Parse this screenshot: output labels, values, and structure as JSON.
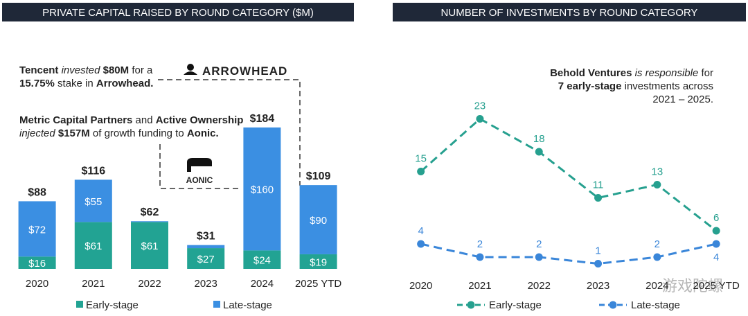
{
  "charts": [
    {
      "type": "stacked_bar",
      "title": "PRIVATE CAPITAL RAISED BY ROUND CATEGORY ($M)",
      "categories": [
        "2020",
        "2021",
        "2022",
        "2023",
        "2024",
        "2025 YTD"
      ],
      "series": [
        {
          "name": "Early-stage",
          "color": "#22a393",
          "values": [
            16,
            61,
            61,
            27,
            24,
            19
          ],
          "value_labels": [
            "$16",
            "$61",
            "$61",
            "$27",
            "$24",
            "$19"
          ]
        },
        {
          "name": "Late-stage",
          "color": "#3b8fe2",
          "values": [
            72,
            55,
            1,
            4,
            160,
            90
          ],
          "value_labels": [
            "$72",
            "$55",
            null,
            null,
            "$160",
            "$90"
          ]
        }
      ],
      "total_labels": [
        "$88",
        "$116",
        "$62",
        "$31",
        "$184",
        "$109"
      ],
      "ylim": [
        0,
        190
      ],
      "annotations": [
        {
          "lines": [
            [
              {
                "text": "Tencent ",
                "style": "bold"
              },
              {
                "text": "invested ",
                "style": "italic"
              },
              {
                "text": "$80M",
                "style": "bold"
              },
              {
                "text": " for a",
                "style": "normal"
              }
            ],
            [
              {
                "text": "15.75%",
                "style": "bold"
              },
              {
                "text": " stake in ",
                "style": "normal"
              },
              {
                "text": "Arrowhead.",
                "style": "bold"
              }
            ]
          ]
        },
        {
          "lines": [
            [
              {
                "text": "Metric Capital Partners",
                "style": "bold"
              },
              {
                "text": " and ",
                "style": "normal"
              },
              {
                "text": "Active Ownership",
                "style": "bold"
              }
            ],
            [
              {
                "text": "injected ",
                "style": "italic"
              },
              {
                "text": "$157M",
                "style": "bold"
              },
              {
                "text": " of growth funding to ",
                "style": "normal"
              },
              {
                "text": "Aonic.",
                "style": "bold"
              }
            ]
          ]
        }
      ],
      "logos": [
        "ARROWHEAD",
        "AONIC"
      ]
    },
    {
      "type": "line",
      "title": "NUMBER OF INVESTMENTS BY ROUND CATEGORY",
      "categories": [
        "2020",
        "2021",
        "2022",
        "2023",
        "2024",
        "2025 YTD"
      ],
      "series": [
        {
          "name": "Early-stage",
          "color": "#26a08f",
          "values": [
            15,
            23,
            18,
            11,
            13,
            6
          ]
        },
        {
          "name": "Late-stage",
          "color": "#3a86d9",
          "values": [
            4,
            2,
            2,
            1,
            2,
            4
          ]
        }
      ],
      "ylim": [
        0,
        26
      ],
      "annotations": [
        {
          "lines": [
            [
              {
                "text": "Behold Ventures",
                "style": "bold"
              },
              {
                "text": " is responsible",
                "style": "italic"
              },
              {
                "text": " for",
                "style": "normal"
              }
            ],
            [
              {
                "text": "7 early-stage",
                "style": "bold"
              },
              {
                "text": " investments across",
                "style": "normal"
              }
            ],
            [
              {
                "text": "2021 – 2025.",
                "style": "normal"
              }
            ]
          ]
        }
      ]
    }
  ],
  "watermark": "游戏陀螺"
}
